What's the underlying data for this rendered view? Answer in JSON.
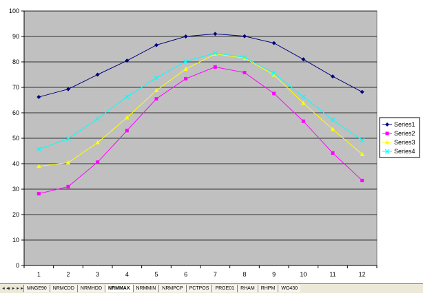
{
  "chart_data": {
    "type": "line",
    "title": "",
    "xlabel": "",
    "ylabel": "",
    "x": [
      1,
      2,
      3,
      4,
      5,
      6,
      7,
      8,
      9,
      10,
      11,
      12
    ],
    "ylim": [
      0,
      100
    ],
    "yticks": [
      0,
      10,
      20,
      30,
      40,
      50,
      60,
      70,
      80,
      90,
      100
    ],
    "grid": "horizontal",
    "legend_position": "right",
    "plot_background": "#c0c0c0",
    "series": [
      {
        "name": "Series1",
        "color": "#000080",
        "marker": "diamond",
        "values": [
          66.2,
          69.3,
          75.0,
          80.5,
          86.6,
          90.0,
          91.0,
          90.1,
          87.4,
          81.0,
          74.3,
          68.2
        ]
      },
      {
        "name": "Series2",
        "color": "#ff00ff",
        "marker": "square",
        "values": [
          28.2,
          31.0,
          40.6,
          53.0,
          65.5,
          73.4,
          78.0,
          75.8,
          67.6,
          56.7,
          44.2,
          33.4
        ]
      },
      {
        "name": "Series3",
        "color": "#ffff00",
        "marker": "triangle",
        "values": [
          39.0,
          40.4,
          48.3,
          58.1,
          68.8,
          77.2,
          83.1,
          81.5,
          74.9,
          63.8,
          53.5,
          43.7
        ]
      },
      {
        "name": "Series4",
        "color": "#00ffff",
        "marker": "x",
        "values": [
          45.7,
          49.8,
          57.7,
          66.3,
          73.7,
          80.2,
          83.5,
          81.8,
          75.6,
          66.3,
          57.2,
          49.2
        ]
      }
    ]
  },
  "sheet_tabs": [
    "MNGE90",
    "NRMCDD",
    "NRMHDD",
    "NRMMAX",
    "NRMMIN",
    "NRMPCP",
    "PCTPOS",
    "PRGE01",
    "RHAM",
    "RHPM",
    "WO430"
  ],
  "active_sheet": "NRMMAX",
  "nav_buttons": [
    "◄◄",
    "◄",
    "►",
    "►►"
  ]
}
